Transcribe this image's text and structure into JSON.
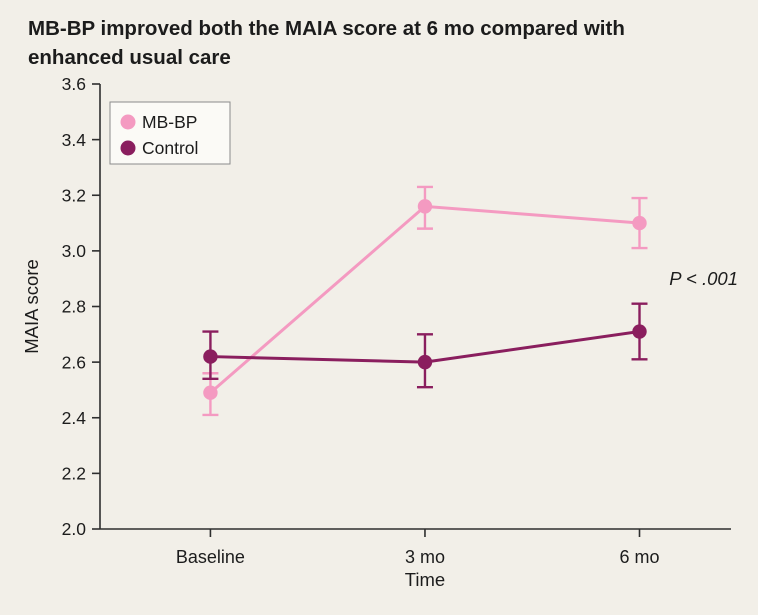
{
  "figure": {
    "title": "MB-BP improved both the MAIA score at 6 mo compared with enhanced usual care"
  },
  "chart_data": {
    "type": "line",
    "x": [
      "Baseline",
      "3 mo",
      "6 mo"
    ],
    "series": [
      {
        "name": "MB-BP",
        "color": "#f49ac1",
        "values": [
          2.49,
          3.16,
          3.1
        ],
        "err_low": [
          2.41,
          3.08,
          3.01
        ],
        "err_high": [
          2.56,
          3.23,
          3.19
        ]
      },
      {
        "name": "Control",
        "color": "#8a1e5e",
        "values": [
          2.62,
          2.6,
          2.71
        ],
        "err_low": [
          2.54,
          2.51,
          2.61
        ],
        "err_high": [
          2.71,
          2.7,
          2.81
        ]
      }
    ],
    "title": "",
    "xlabel": "Time",
    "ylabel": "MAIA score",
    "ylim": [
      2.0,
      3.6
    ],
    "yticks": [
      3.6,
      3.4,
      3.2,
      3.0,
      2.8,
      2.6,
      2.4,
      2.2,
      2.0
    ],
    "grid": false,
    "legend_position": "top-left",
    "annotation": "P < .001",
    "axis_color": "#2e2e2e",
    "legend_border_color": "#8b8b8b",
    "legend_bg_color": "#fbfaf6"
  }
}
